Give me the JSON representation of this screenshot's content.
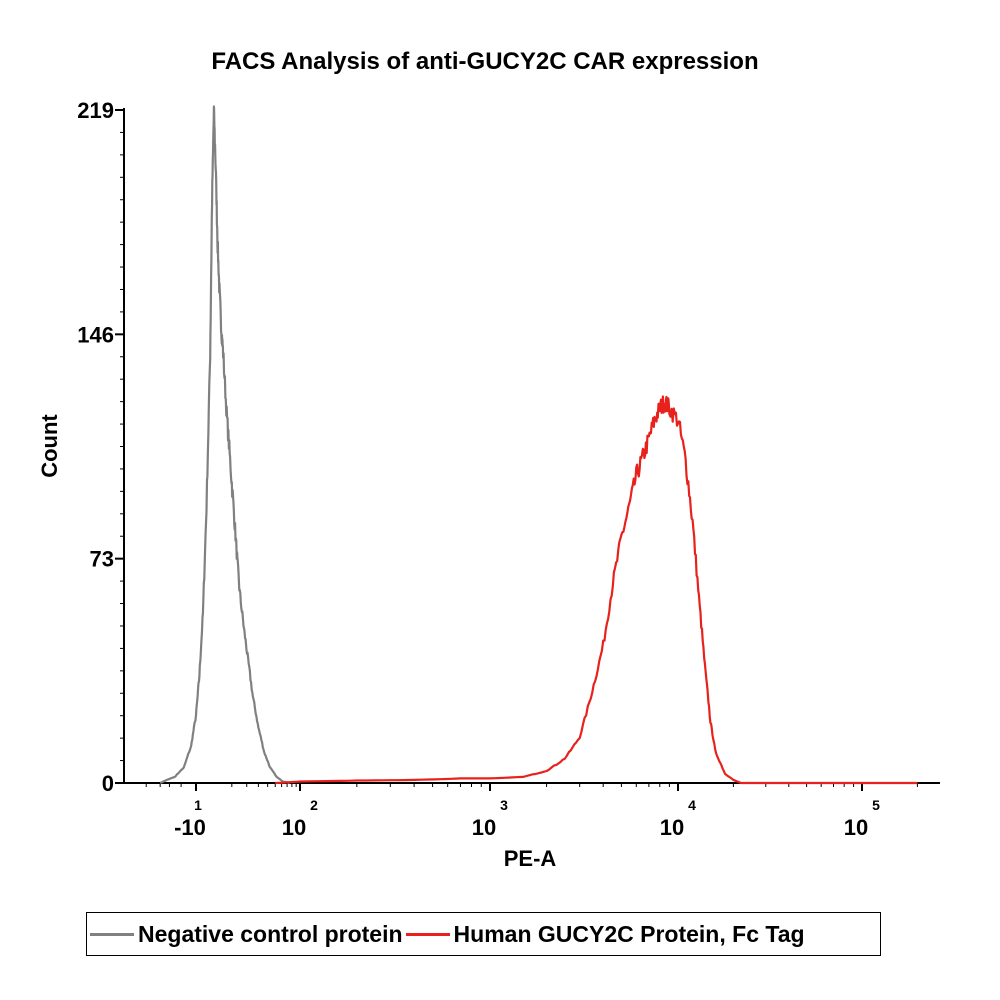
{
  "chart_data": {
    "type": "line",
    "title": "FACS Analysis of anti-GUCY2C CAR expression",
    "xlabel": "PE-A",
    "ylabel": "Count",
    "ylim": [
      0,
      219
    ],
    "x_scale": "biexponential",
    "y_ticks": [
      "0",
      "73",
      "146",
      "219"
    ],
    "x_ticks": [
      {
        "base": "-10",
        "exp": "1",
        "value": -10
      },
      {
        "base": "10",
        "exp": "2",
        "value": 100
      },
      {
        "base": "10",
        "exp": "3",
        "value": 1000
      },
      {
        "base": "10",
        "exp": "4",
        "value": 10000
      },
      {
        "base": "10",
        "exp": "5",
        "value": 100000
      }
    ],
    "grid": false,
    "legend_position": "bottom",
    "series": [
      {
        "name": "Negative control protein",
        "color": "#808080",
        "points": [
          [
            -40,
            0
          ],
          [
            -25,
            2
          ],
          [
            -18,
            5
          ],
          [
            -13,
            12
          ],
          [
            -10,
            22
          ],
          [
            -8,
            35
          ],
          [
            -6,
            55
          ],
          [
            -4,
            90
          ],
          [
            -2,
            140
          ],
          [
            -1,
            190
          ],
          [
            0,
            219
          ],
          [
            1,
            200
          ],
          [
            2,
            175
          ],
          [
            3,
            160
          ],
          [
            4,
            148
          ],
          [
            5,
            140
          ],
          [
            7,
            120
          ],
          [
            9,
            105
          ],
          [
            11,
            90
          ],
          [
            13,
            75
          ],
          [
            15,
            62
          ],
          [
            18,
            50
          ],
          [
            21,
            40
          ],
          [
            25,
            28
          ],
          [
            30,
            18
          ],
          [
            36,
            10
          ],
          [
            43,
            5
          ],
          [
            52,
            2
          ],
          [
            62,
            0.5
          ],
          [
            75,
            0
          ]
        ]
      },
      {
        "name": "Human GUCY2C Protein, Fc Tag",
        "color": "#e8211c",
        "points": [
          [
            50,
            0
          ],
          [
            100,
            0.5
          ],
          [
            200,
            0.8
          ],
          [
            400,
            1
          ],
          [
            700,
            1.5
          ],
          [
            1000,
            1.5
          ],
          [
            1500,
            2
          ],
          [
            2000,
            4
          ],
          [
            2500,
            8
          ],
          [
            3000,
            15
          ],
          [
            3500,
            30
          ],
          [
            4000,
            45
          ],
          [
            4500,
            65
          ],
          [
            5000,
            80
          ],
          [
            5500,
            90
          ],
          [
            6000,
            100
          ],
          [
            6500,
            106
          ],
          [
            7000,
            112
          ],
          [
            7500,
            118
          ],
          [
            8000,
            122
          ],
          [
            8500,
            124
          ],
          [
            9000,
            122
          ],
          [
            10000,
            118
          ],
          [
            11000,
            105
          ],
          [
            12000,
            85
          ],
          [
            13000,
            60
          ],
          [
            14000,
            38
          ],
          [
            15000,
            20
          ],
          [
            16000,
            10
          ],
          [
            18000,
            3
          ],
          [
            20000,
            1
          ],
          [
            22000,
            0
          ],
          [
            30000,
            0
          ],
          [
            100000,
            0
          ],
          [
            200000,
            0
          ]
        ]
      }
    ]
  }
}
